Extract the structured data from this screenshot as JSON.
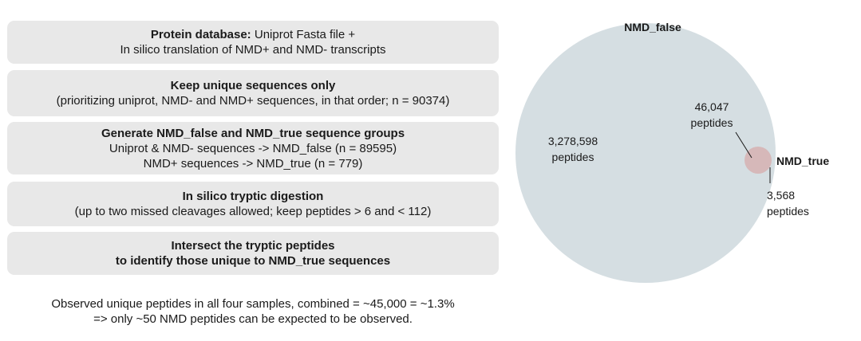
{
  "steps": [
    {
      "title": "Protein database:",
      "title_rest": " Uniprot Fasta file +",
      "lines": [
        "In silico translation of NMD+ and NMD- transcripts"
      ]
    },
    {
      "title": "Keep unique sequences only",
      "lines": [
        "(prioritizing uniprot, NMD- and NMD+ sequences, in that order; n = 90374)"
      ]
    },
    {
      "title": "Generate NMD_false and NMD_true sequence groups",
      "lines": [
        "Uniprot & NMD- sequences -> NMD_false (n = 89595)",
        "NMD+ sequences -> NMD_true (n = 779)"
      ]
    },
    {
      "title": "In silico tryptic digestion",
      "lines": [
        "(up to two missed cleavages allowed; keep peptides > 6 and < 112)"
      ]
    },
    {
      "title": "Intersect the tryptic peptides",
      "title2": "to identify those unique to NMD_true sequences"
    }
  ],
  "note": {
    "line1": "Observed unique peptides in all four samples, combined = ~45,000 = ~1.3%",
    "line2": "=> only ~50 NMD peptides can be expected to be observed."
  },
  "venn": {
    "set_a": {
      "name": "NMD_false",
      "count_label": "3,278,598",
      "unit_label": "peptides",
      "count": 3278598,
      "color": "#d5dee2",
      "label_color": "#1f9aa0"
    },
    "set_b": {
      "name": "NMD_true",
      "count_label": "3,568",
      "unit_label": "peptides",
      "count": 3568,
      "color": "#d6b2b2",
      "label_color": "#a32a1f"
    },
    "overlap": {
      "count_label": "46,047",
      "unit_label": "peptides",
      "count": 46047
    }
  }
}
